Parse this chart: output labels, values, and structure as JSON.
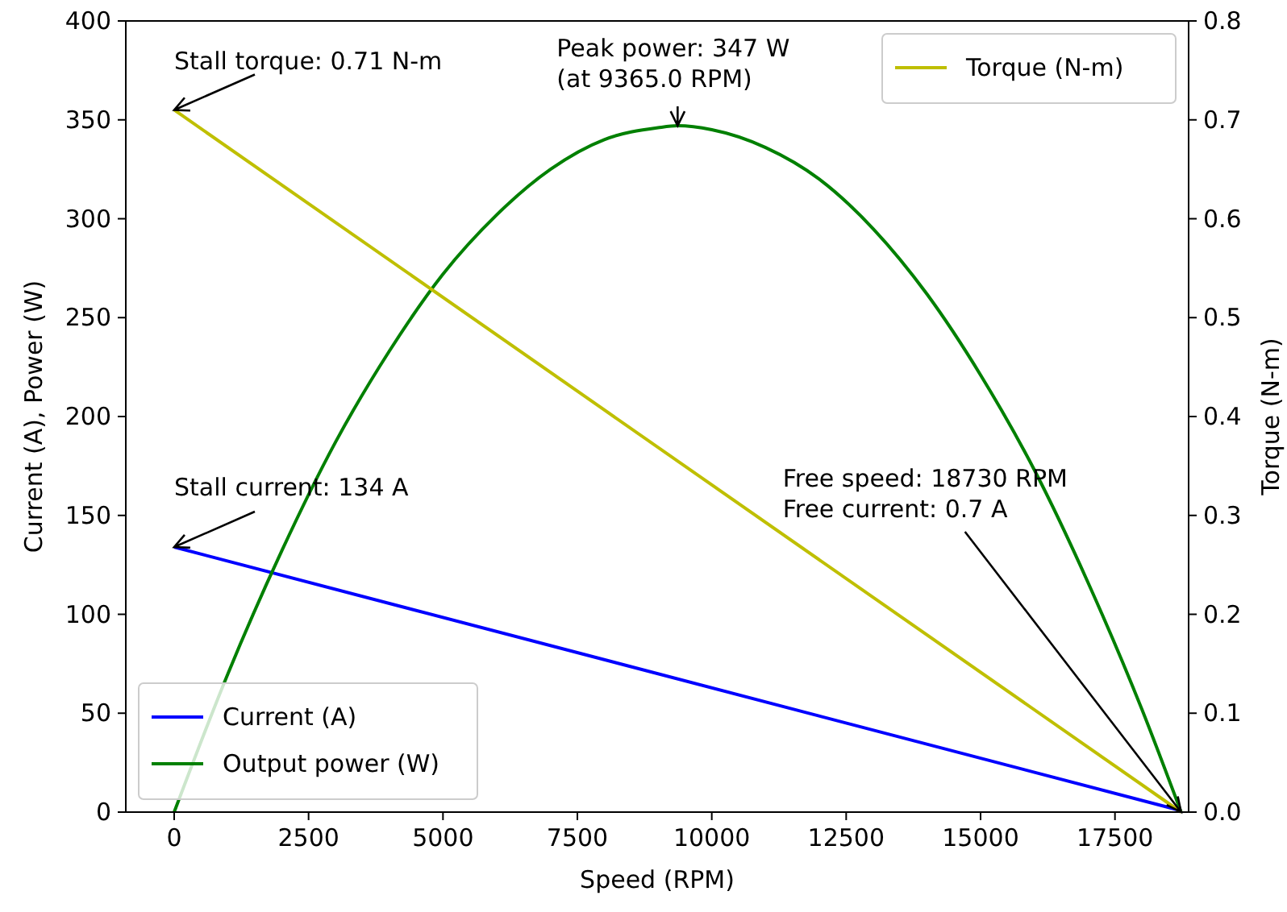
{
  "chart_data": {
    "type": "line",
    "xlabel": "Speed (RPM)",
    "ylabel": "Current (A), Power (W)",
    "y2label": "Torque (N-m)",
    "xlim": [
      -900,
      18870
    ],
    "xticks": [
      0,
      2500,
      5000,
      7500,
      10000,
      12500,
      15000,
      17500
    ],
    "ylim": [
      0,
      400
    ],
    "yticks": [
      0,
      50,
      100,
      150,
      200,
      250,
      300,
      350,
      400
    ],
    "y2lim": [
      0,
      0.8
    ],
    "y2ticks": [
      {
        "value": 0,
        "label": "0.0"
      },
      0.1,
      0.2,
      0.3,
      0.4,
      0.5,
      0.6,
      0.7,
      0.8
    ],
    "legend": "bottom left",
    "grid": false,
    "series": [
      {
        "name": "Current (A)",
        "color": "#0000ff",
        "x": [
          0,
          18730
        ],
        "values": [
          134,
          0.7
        ]
      },
      {
        "name": "Output power (W)",
        "color": "#008000",
        "x": [
          0,
          1000,
          2000,
          3000,
          4000,
          5000,
          6000,
          7000,
          8000,
          9000,
          9365,
          10000,
          11000,
          12000,
          13000,
          14000,
          15000,
          16000,
          17000,
          18000,
          18730
        ],
        "values": [
          0,
          70,
          132,
          187,
          233,
          272,
          302,
          325,
          340,
          346,
          347,
          345,
          336,
          320,
          295,
          262,
          221,
          173,
          116,
          52,
          0
        ]
      },
      {
        "name": "Torque (N-m)",
        "color": "#bfbf00",
        "axis": "y2",
        "x": [
          0,
          18730
        ],
        "values": [
          0.71,
          0
        ]
      }
    ],
    "annotations": [
      {
        "text": "Stall torque: 0.71 N-m",
        "x": 0,
        "y": 355
      },
      {
        "text": "Peak power: 347 W\n(at 9365.0 RPM)",
        "x": 9365,
        "y": 347
      },
      {
        "text": "Stall current: 134 A",
        "x": 0,
        "y": 134
      },
      {
        "text": "Free speed: 18730 RPM\nFree current: 0.7 A",
        "x": 18730,
        "y": 0
      }
    ]
  }
}
